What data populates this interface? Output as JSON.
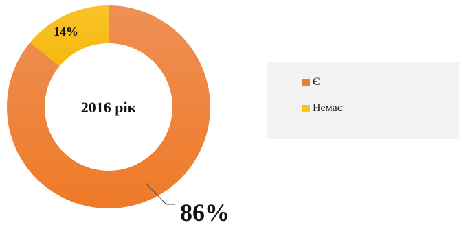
{
  "chart_data": {
    "type": "pie",
    "variant": "donut",
    "center_label": "2016 рік",
    "slices": [
      {
        "name": "Є",
        "value": 86,
        "label": "86%",
        "color": "#f07f2c"
      },
      {
        "name": "Немає",
        "value": 14,
        "label": "14%",
        "color": "#fbc31b"
      }
    ],
    "legend": {
      "position": "right",
      "items": [
        "Є",
        "Немає"
      ]
    }
  }
}
